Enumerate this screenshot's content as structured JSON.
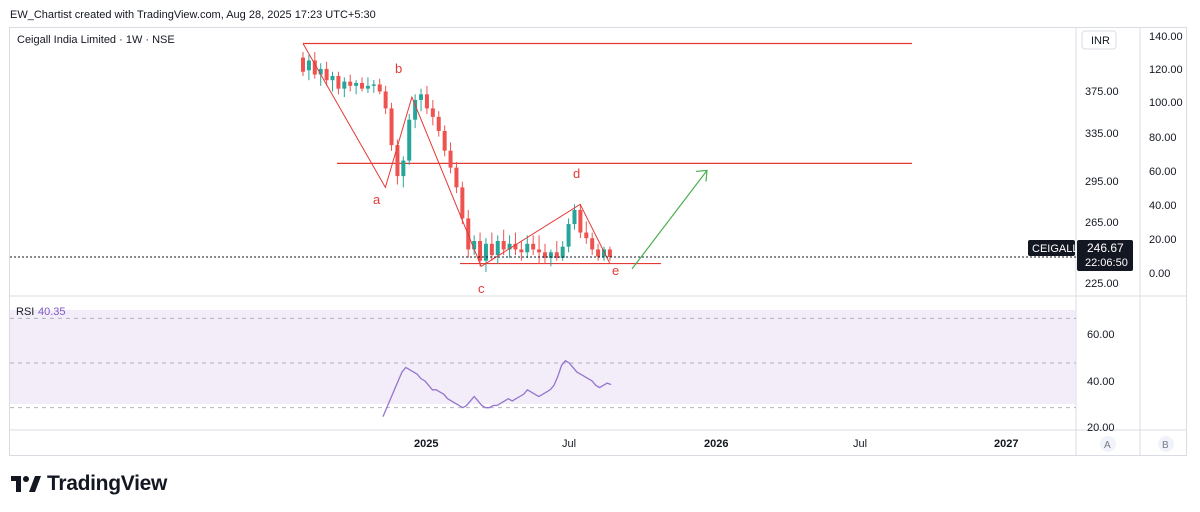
{
  "header": {
    "text": "EW_Chartist created with TradingView.com, Aug 28, 2025 17:23 UTC+5:30"
  },
  "symbol_title": "Ceigall India Limited · 1W · NSE",
  "currency": "INR",
  "price_axis": {
    "ticks": [
      "375.00",
      "335.00",
      "295.00",
      "265.00",
      "225.00"
    ]
  },
  "percent_axis": {
    "ticks": [
      "140.00",
      "120.00",
      "100.00",
      "80.00",
      "60.00",
      "40.00",
      "20.00",
      "0.00"
    ]
  },
  "last_price": {
    "ticker": "CEIGALL",
    "price": "246.67",
    "countdown": "22:06:50"
  },
  "rsi": {
    "label": "RSI",
    "value": "40.35",
    "ticks": [
      "60.00",
      "40.00",
      "20.00"
    ]
  },
  "time_axis": {
    "labels": [
      "2025",
      "Jul",
      "2026",
      "Jul",
      "2027"
    ]
  },
  "scale_buttons": [
    "A",
    "B"
  ],
  "wave_labels": [
    "a",
    "b",
    "c",
    "d",
    "e"
  ],
  "logo": {
    "text": "TradingView"
  },
  "colors": {
    "up": "#26a69a",
    "down": "#ef5350",
    "lines": "#e53935",
    "arrow": "#4caf50",
    "rsi": "#9575cd",
    "rsi_band": "#ede7f6"
  },
  "chart_data": {
    "type": "candlestick",
    "timeframe": "1W",
    "candles": [
      {
        "o": 388,
        "h": 392,
        "l": 375,
        "c": 378
      },
      {
        "o": 379,
        "h": 390,
        "l": 372,
        "c": 386
      },
      {
        "o": 386,
        "h": 392,
        "l": 373,
        "c": 376
      },
      {
        "o": 376,
        "h": 384,
        "l": 368,
        "c": 380
      },
      {
        "o": 380,
        "h": 385,
        "l": 368,
        "c": 372
      },
      {
        "o": 372,
        "h": 378,
        "l": 364,
        "c": 375
      },
      {
        "o": 375,
        "h": 378,
        "l": 362,
        "c": 366
      },
      {
        "o": 366,
        "h": 374,
        "l": 360,
        "c": 371
      },
      {
        "o": 371,
        "h": 376,
        "l": 364,
        "c": 368
      },
      {
        "o": 368,
        "h": 372,
        "l": 362,
        "c": 370
      },
      {
        "o": 370,
        "h": 374,
        "l": 364,
        "c": 366
      },
      {
        "o": 366,
        "h": 374,
        "l": 363,
        "c": 368
      },
      {
        "o": 368,
        "h": 372,
        "l": 363,
        "c": 369
      },
      {
        "o": 369,
        "h": 373,
        "l": 362,
        "c": 364
      },
      {
        "o": 364,
        "h": 368,
        "l": 348,
        "c": 352
      },
      {
        "o": 352,
        "h": 356,
        "l": 322,
        "c": 326
      },
      {
        "o": 326,
        "h": 330,
        "l": 298,
        "c": 304
      },
      {
        "o": 304,
        "h": 318,
        "l": 296,
        "c": 315
      },
      {
        "o": 315,
        "h": 348,
        "l": 312,
        "c": 344
      },
      {
        "o": 344,
        "h": 362,
        "l": 338,
        "c": 358
      },
      {
        "o": 358,
        "h": 366,
        "l": 350,
        "c": 362
      },
      {
        "o": 362,
        "h": 368,
        "l": 348,
        "c": 352
      },
      {
        "o": 352,
        "h": 358,
        "l": 340,
        "c": 346
      },
      {
        "o": 346,
        "h": 350,
        "l": 332,
        "c": 336
      },
      {
        "o": 336,
        "h": 340,
        "l": 318,
        "c": 322
      },
      {
        "o": 322,
        "h": 328,
        "l": 306,
        "c": 310
      },
      {
        "o": 310,
        "h": 314,
        "l": 292,
        "c": 296
      },
      {
        "o": 296,
        "h": 300,
        "l": 270,
        "c": 274
      },
      {
        "o": 274,
        "h": 280,
        "l": 246,
        "c": 252
      },
      {
        "o": 252,
        "h": 262,
        "l": 248,
        "c": 258
      },
      {
        "o": 258,
        "h": 264,
        "l": 240,
        "c": 244
      },
      {
        "o": 244,
        "h": 260,
        "l": 236,
        "c": 256
      },
      {
        "o": 256,
        "h": 264,
        "l": 244,
        "c": 248
      },
      {
        "o": 248,
        "h": 262,
        "l": 242,
        "c": 258
      },
      {
        "o": 258,
        "h": 266,
        "l": 248,
        "c": 252
      },
      {
        "o": 252,
        "h": 262,
        "l": 246,
        "c": 256
      },
      {
        "o": 256,
        "h": 264,
        "l": 248,
        "c": 252
      },
      {
        "o": 252,
        "h": 258,
        "l": 244,
        "c": 250
      },
      {
        "o": 250,
        "h": 262,
        "l": 246,
        "c": 256
      },
      {
        "o": 256,
        "h": 262,
        "l": 248,
        "c": 252
      },
      {
        "o": 252,
        "h": 262,
        "l": 242,
        "c": 250
      },
      {
        "o": 250,
        "h": 256,
        "l": 242,
        "c": 246
      },
      {
        "o": 246,
        "h": 252,
        "l": 240,
        "c": 250
      },
      {
        "o": 250,
        "h": 258,
        "l": 244,
        "c": 246
      },
      {
        "o": 246,
        "h": 258,
        "l": 244,
        "c": 254
      },
      {
        "o": 254,
        "h": 274,
        "l": 250,
        "c": 270
      },
      {
        "o": 270,
        "h": 284,
        "l": 266,
        "c": 280
      },
      {
        "o": 280,
        "h": 284,
        "l": 260,
        "c": 264
      },
      {
        "o": 264,
        "h": 272,
        "l": 256,
        "c": 260
      },
      {
        "o": 260,
        "h": 264,
        "l": 248,
        "c": 252
      },
      {
        "o": 252,
        "h": 256,
        "l": 244,
        "c": 247
      },
      {
        "o": 247,
        "h": 254,
        "l": 244,
        "c": 252
      },
      {
        "o": 252,
        "h": 254,
        "l": 244,
        "c": 246.67
      }
    ],
    "horizontal_levels": [
      398,
      313,
      242
    ],
    "wave_points": {
      "a": {
        "index": 16,
        "price": 296
      },
      "b": {
        "index": 22,
        "price": 360
      },
      "c": {
        "index": 34,
        "price": 240
      },
      "d": {
        "index": 53,
        "price": 284
      },
      "e": {
        "index": 62,
        "price": 242
      }
    },
    "projection": {
      "from_price": 246,
      "to_price": 308
    },
    "rsi_values": [
      26,
      30,
      34,
      38,
      42,
      46,
      48,
      47,
      46,
      45,
      43,
      42,
      40,
      38,
      38,
      37,
      36,
      34,
      33,
      32,
      31,
      30,
      31,
      33,
      35,
      33,
      31,
      30,
      30,
      31,
      31,
      32,
      33,
      34,
      33,
      34,
      35,
      36,
      38,
      37,
      36,
      35,
      36,
      37,
      38,
      40,
      44,
      49,
      51,
      50,
      48,
      46,
      45,
      44,
      43,
      42,
      40,
      39,
      40,
      41,
      40.35
    ],
    "rsi_levels": [
      70,
      50,
      30
    ],
    "price_axis_range": [
      219,
      409
    ],
    "rsi_axis_range": [
      20,
      80
    ]
  }
}
